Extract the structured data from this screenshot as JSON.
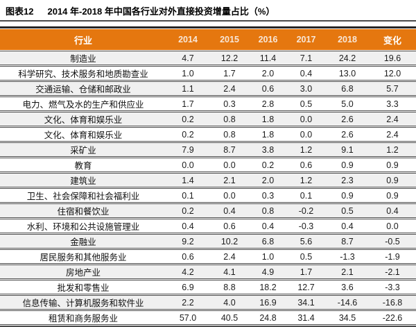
{
  "figure": {
    "label": "图表12",
    "title": "2014 年-2018 年中国各行业对外直接投资增量占比（%）"
  },
  "chart_data": {
    "type": "table",
    "columns": [
      "行业",
      "2014",
      "2015",
      "2016",
      "2017",
      "2018",
      "变化"
    ],
    "rows": [
      {
        "industry": "制造业",
        "values": [
          "4.7",
          "12.2",
          "11.4",
          "7.1",
          "24.2",
          "19.6"
        ]
      },
      {
        "industry": "科学研究、技术服务和地质勘查业",
        "values": [
          "1.0",
          "1.7",
          "2.0",
          "0.4",
          "13.0",
          "12.0"
        ]
      },
      {
        "industry": "交通运输、仓储和邮政业",
        "values": [
          "1.1",
          "2.4",
          "0.6",
          "3.0",
          "6.8",
          "5.7"
        ]
      },
      {
        "industry": "电力、燃气及水的生产和供应业",
        "values": [
          "1.7",
          "0.3",
          "2.8",
          "0.5",
          "5.0",
          "3.3"
        ]
      },
      {
        "industry": "文化、体育和娱乐业",
        "values": [
          "0.2",
          "0.8",
          "1.8",
          "0.0",
          "2.6",
          "2.4"
        ]
      },
      {
        "industry": "文化、体育和娱乐业",
        "values": [
          "0.2",
          "0.8",
          "1.8",
          "0.0",
          "2.6",
          "2.4"
        ]
      },
      {
        "industry": "采矿业",
        "values": [
          "7.9",
          "8.7",
          "3.8",
          "1.2",
          "9.1",
          "1.2"
        ]
      },
      {
        "industry": "教育",
        "values": [
          "0.0",
          "0.0",
          "0.2",
          "0.6",
          "0.9",
          "0.9"
        ]
      },
      {
        "industry": "建筑业",
        "values": [
          "1.4",
          "2.1",
          "2.0",
          "1.2",
          "2.3",
          "0.9"
        ]
      },
      {
        "industry": "卫生、社会保障和社会福利业",
        "values": [
          "0.1",
          "0.0",
          "0.3",
          "0.1",
          "0.9",
          "0.9"
        ]
      },
      {
        "industry": "住宿和餐饮业",
        "values": [
          "0.2",
          "0.4",
          "0.8",
          "-0.2",
          "0.5",
          "0.4"
        ]
      },
      {
        "industry": "水利、环境和公共设施管理业",
        "values": [
          "0.4",
          "0.6",
          "0.4",
          "-0.3",
          "0.4",
          "0.0"
        ]
      },
      {
        "industry": "金融业",
        "values": [
          "9.2",
          "10.2",
          "6.8",
          "5.6",
          "8.7",
          "-0.5"
        ]
      },
      {
        "industry": "居民服务和其他服务业",
        "values": [
          "0.6",
          "2.4",
          "1.0",
          "0.5",
          "-1.3",
          "-1.9"
        ]
      },
      {
        "industry": "房地产业",
        "values": [
          "4.2",
          "4.1",
          "4.9",
          "1.7",
          "2.1",
          "-2.1"
        ]
      },
      {
        "industry": "批发和零售业",
        "values": [
          "6.9",
          "8.8",
          "18.2",
          "12.7",
          "3.6",
          "-3.3"
        ]
      },
      {
        "industry": "信息传输、计算机服务和软件业",
        "values": [
          "2.2",
          "4.0",
          "16.9",
          "34.1",
          "-14.6",
          "-16.8"
        ]
      },
      {
        "industry": "租赁和商务服务业",
        "values": [
          "57.0",
          "40.5",
          "24.8",
          "31.4",
          "34.5",
          "-22.6"
        ]
      }
    ]
  },
  "colors": {
    "header_bg": "#E5770F",
    "header_text": "#FFFFFF",
    "year_text": "#F8E7D8",
    "alt_row_bg": "#F0F0F0",
    "border": "#4D4D4D"
  }
}
